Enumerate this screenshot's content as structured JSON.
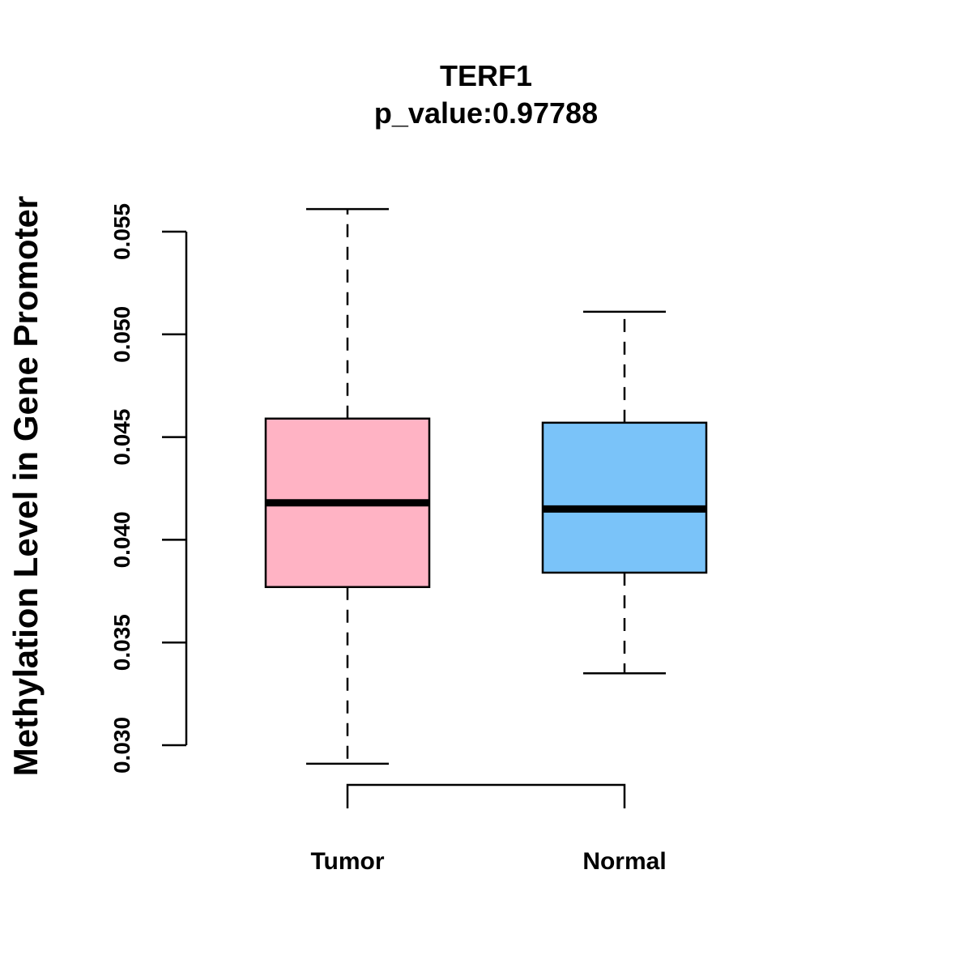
{
  "chart_data": {
    "type": "box",
    "title": "TERF1",
    "subtitle": "p_value:0.97788",
    "xlabel": "",
    "ylabel": "Methylation Level in Gene Promoter",
    "ylim": [
      0.03,
      0.055
    ],
    "yticks": [
      "0.030",
      "0.035",
      "0.040",
      "0.045",
      "0.050",
      "0.055"
    ],
    "categories": [
      "Tumor",
      "Normal"
    ],
    "series": [
      {
        "name": "Tumor",
        "color": "#FFB3C4",
        "whisker_low": 0.0291,
        "q1": 0.0377,
        "median": 0.0418,
        "q3": 0.0459,
        "whisker_high": 0.0561
      },
      {
        "name": "Normal",
        "color": "#7AC3F9",
        "whisker_low": 0.0335,
        "q1": 0.0384,
        "median": 0.0415,
        "q3": 0.0457,
        "whisker_high": 0.0511
      }
    ]
  }
}
